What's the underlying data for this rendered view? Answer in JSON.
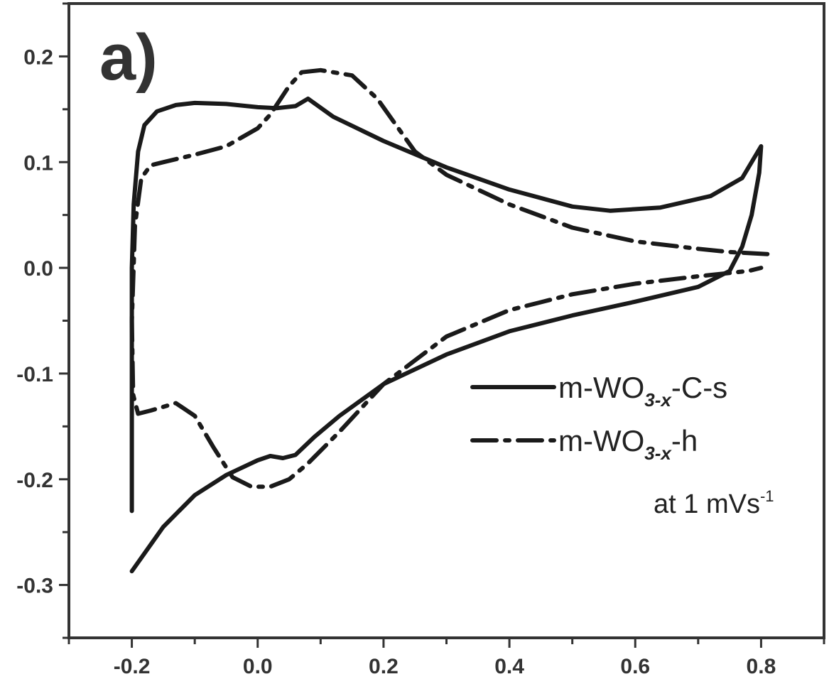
{
  "chart_data": {
    "type": "line",
    "panel_label": "a)",
    "xlim": [
      -0.3,
      0.9
    ],
    "ylim": [
      -0.35,
      0.25
    ],
    "x_major_ticks": [
      -0.2,
      0.0,
      0.2,
      0.4,
      0.6,
      0.8
    ],
    "y_major_ticks": [
      0.2,
      0.1,
      0.0,
      -0.1,
      -0.2,
      -0.3
    ],
    "x_tick_labels": [
      "-0.2",
      "0.0",
      "0.2",
      "0.4",
      "0.6",
      "0.8"
    ],
    "y_tick_labels": [
      "0.2",
      "0.1",
      "0.0",
      "-0.1",
      "-0.2",
      "-0.3"
    ],
    "xlabel": "",
    "ylabel": "",
    "grid": false,
    "legend_position": "right",
    "annotation": {
      "text": "at 1 mVs",
      "sup": "-1"
    },
    "series": [
      {
        "name": "m-WO3-x-C-s",
        "name_parts": {
          "main": "m-WO",
          "sub": "3-x",
          "suffix": "-C-s"
        },
        "style": "solid",
        "points": [
          [
            -0.2,
            -0.23
          ],
          [
            -0.2,
            0.0
          ],
          [
            -0.197,
            0.06
          ],
          [
            -0.19,
            0.11
          ],
          [
            -0.18,
            0.135
          ],
          [
            -0.16,
            0.148
          ],
          [
            -0.13,
            0.154
          ],
          [
            -0.1,
            0.156
          ],
          [
            -0.05,
            0.155
          ],
          [
            0.0,
            0.152
          ],
          [
            0.03,
            0.151
          ],
          [
            0.06,
            0.153
          ],
          [
            0.08,
            0.16
          ],
          [
            0.12,
            0.143
          ],
          [
            0.2,
            0.12
          ],
          [
            0.3,
            0.095
          ],
          [
            0.4,
            0.074
          ],
          [
            0.5,
            0.058
          ],
          [
            0.56,
            0.054
          ],
          [
            0.64,
            0.057
          ],
          [
            0.72,
            0.068
          ],
          [
            0.77,
            0.085
          ],
          [
            0.8,
            0.115
          ],
          [
            0.797,
            0.09
          ],
          [
            0.785,
            0.05
          ],
          [
            0.77,
            0.02
          ],
          [
            0.75,
            -0.003
          ],
          [
            0.7,
            -0.018
          ],
          [
            0.6,
            -0.032
          ],
          [
            0.5,
            -0.045
          ],
          [
            0.4,
            -0.06
          ],
          [
            0.3,
            -0.082
          ],
          [
            0.2,
            -0.11
          ],
          [
            0.13,
            -0.14
          ],
          [
            0.09,
            -0.16
          ],
          [
            0.06,
            -0.177
          ],
          [
            0.04,
            -0.18
          ],
          [
            0.02,
            -0.178
          ],
          [
            0.0,
            -0.182
          ],
          [
            -0.05,
            -0.196
          ],
          [
            -0.1,
            -0.215
          ],
          [
            -0.15,
            -0.245
          ],
          [
            -0.2,
            -0.287
          ]
        ]
      },
      {
        "name": "m-WO3-x-h",
        "name_parts": {
          "main": "m-WO",
          "sub": "3-x",
          "suffix": "-h"
        },
        "style": "dash-dot",
        "points": [
          [
            0.81,
            0.013
          ],
          [
            0.75,
            0.015
          ],
          [
            0.7,
            0.018
          ],
          [
            0.6,
            0.025
          ],
          [
            0.5,
            0.038
          ],
          [
            0.4,
            0.06
          ],
          [
            0.3,
            0.088
          ],
          [
            0.25,
            0.11
          ],
          [
            0.22,
            0.135
          ],
          [
            0.19,
            0.16
          ],
          [
            0.15,
            0.182
          ],
          [
            0.1,
            0.187
          ],
          [
            0.07,
            0.185
          ],
          [
            0.05,
            0.172
          ],
          [
            0.02,
            0.145
          ],
          [
            0.0,
            0.132
          ],
          [
            -0.05,
            0.115
          ],
          [
            -0.1,
            0.107
          ],
          [
            -0.15,
            0.1
          ],
          [
            -0.17,
            0.097
          ],
          [
            -0.185,
            0.085
          ],
          [
            -0.195,
            0.04
          ],
          [
            -0.2,
            -0.05
          ],
          [
            -0.198,
            -0.12
          ],
          [
            -0.19,
            -0.138
          ],
          [
            -0.17,
            -0.135
          ],
          [
            -0.13,
            -0.128
          ],
          [
            -0.1,
            -0.14
          ],
          [
            -0.07,
            -0.17
          ],
          [
            -0.04,
            -0.198
          ],
          [
            -0.01,
            -0.207
          ],
          [
            0.02,
            -0.207
          ],
          [
            0.05,
            -0.2
          ],
          [
            0.08,
            -0.185
          ],
          [
            0.13,
            -0.155
          ],
          [
            0.2,
            -0.11
          ],
          [
            0.3,
            -0.065
          ],
          [
            0.4,
            -0.04
          ],
          [
            0.5,
            -0.025
          ],
          [
            0.6,
            -0.015
          ],
          [
            0.7,
            -0.008
          ],
          [
            0.78,
            -0.003
          ],
          [
            0.8,
            0.0
          ]
        ]
      }
    ]
  }
}
